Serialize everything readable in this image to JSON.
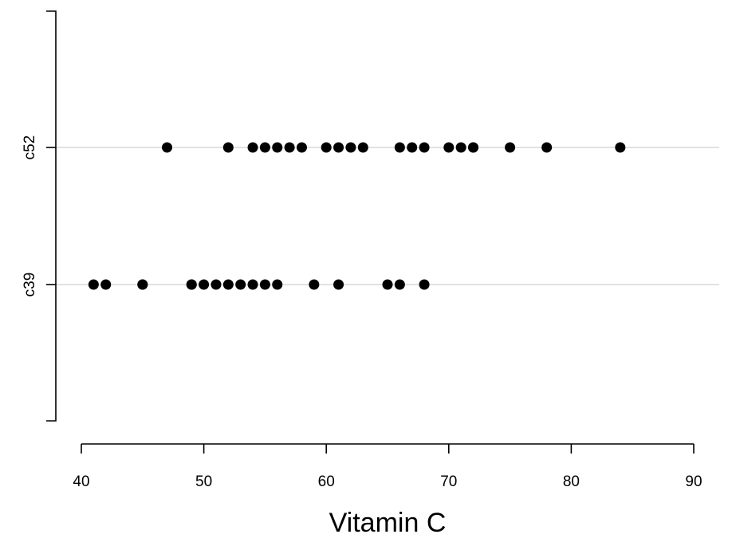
{
  "chart_data": {
    "type": "scatter",
    "title": "",
    "xlabel": "Vitamin C",
    "ylabel": "",
    "xlim": [
      40,
      90
    ],
    "xticks": [
      "40",
      "50",
      "60",
      "70",
      "80",
      "90"
    ],
    "categories": [
      "c39",
      "c52"
    ],
    "grid": "horizontal lines at each category",
    "marker_color": "#000000",
    "grid_color": "#d9d9d9",
    "series": [
      {
        "category": "c39",
        "values": [
          41,
          42,
          45,
          45,
          49,
          49,
          50,
          51,
          52,
          53,
          54,
          55,
          56,
          59,
          61,
          65,
          66,
          68
        ]
      },
      {
        "category": "c52",
        "values": [
          47,
          52,
          54,
          55,
          56,
          57,
          58,
          60,
          61,
          62,
          63,
          66,
          67,
          68,
          70,
          71,
          72,
          72,
          75,
          78,
          84
        ]
      }
    ]
  }
}
